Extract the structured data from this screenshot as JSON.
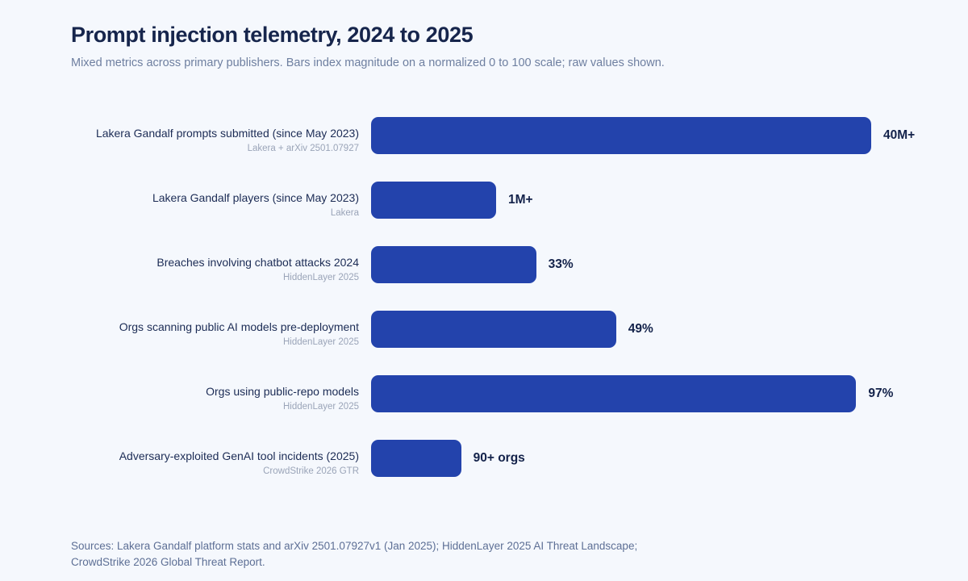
{
  "header": {
    "title": "Prompt injection telemetry, 2024 to 2025",
    "subtitle": "Mixed metrics across primary publishers. Bars index magnitude on a normalized 0 to 100 scale; raw values shown."
  },
  "colors": {
    "background": "#F5F8FD",
    "bar": "#2343AC",
    "title_text": "#16254C",
    "subtitle_text": "#6E7FA0",
    "label_text": "#1C2C55",
    "source_text": "#9AA4B8",
    "value_text": "#13224A",
    "footer_text": "#5D6F95"
  },
  "chart_data": {
    "type": "bar",
    "orientation": "horizontal",
    "title": "Prompt injection telemetry, 2024 to 2025",
    "subtitle": "Mixed metrics across primary publishers. Bars index magnitude on a normalized 0 to 100 scale; raw values shown.",
    "normalized_axis_range": [
      0,
      100
    ],
    "grid": false,
    "legend": false,
    "categories": [
      "Lakera Gandalf prompts submitted (since May 2023)",
      "Lakera Gandalf players (since May 2023)",
      "Breaches involving chatbot attacks 2024",
      "Orgs scanning public AI models pre-deployment",
      "Orgs using public-repo models",
      "Adversary-exploited GenAI tool incidents (2025)"
    ],
    "sources": [
      "Lakera + arXiv 2501.07927",
      "Lakera",
      "HiddenLayer 2025",
      "HiddenLayer 2025",
      "HiddenLayer 2025",
      "CrowdStrike 2026 GTR"
    ],
    "value_labels": [
      "40M+",
      "1M+",
      "33%",
      "49%",
      "97%",
      "90+ orgs"
    ],
    "values_normalized": [
      100,
      25,
      33,
      49,
      97,
      18
    ]
  },
  "footer": {
    "lines": [
      "Sources: Lakera Gandalf platform stats and arXiv 2501.07927v1 (Jan 2025); HiddenLayer 2025 AI Threat Landscape;",
      "CrowdStrike 2026 Global Threat Report."
    ]
  }
}
